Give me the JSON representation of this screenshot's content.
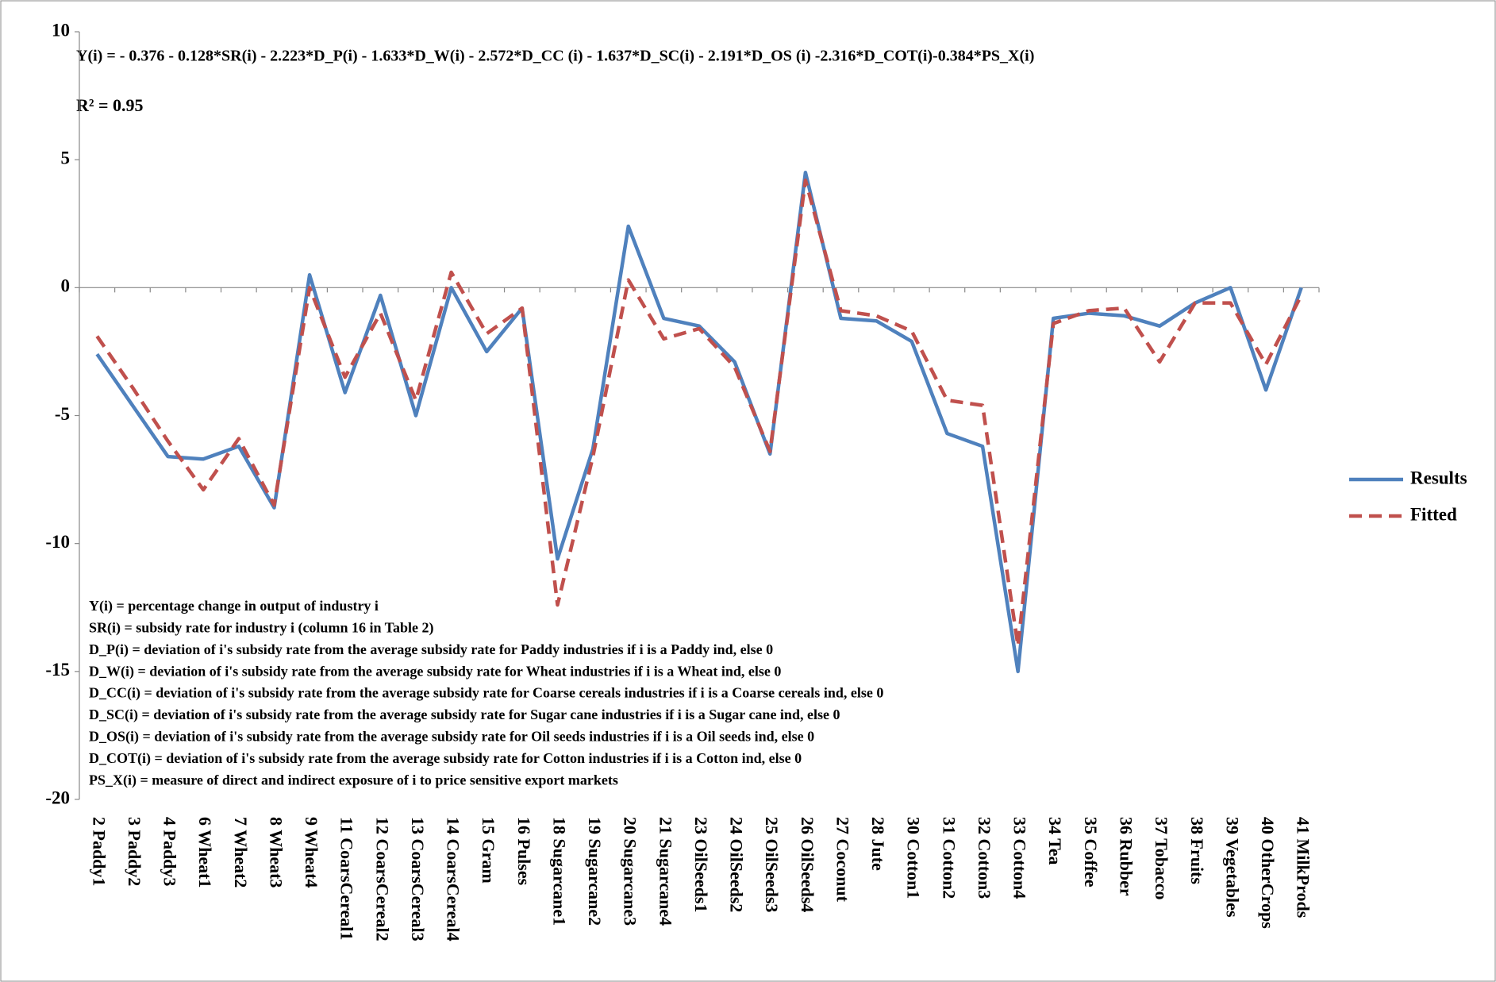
{
  "chart_data": {
    "type": "line",
    "title": "Y(i) = - 0.376 - 0.128*SR(i) - 2.223*D_P(i)  - 1.633*D_W(i)   - 2.572*D_CC (i) - 1.637*D_SC(i) - 2.191*D_OS (i) -2.316*D_COT(i)-0.384*PS_X(i)",
    "subtitle": "R² = 0.95",
    "annotations": [
      "Y(i) = percentage change in output of industry i",
      "SR(i) = subsidy rate for industry i (column 16 in Table 2)",
      "D_P(i) = deviation of i's subsidy rate from the average subsidy rate for Paddy industries if i is a Paddy ind, else 0",
      "D_W(i) = deviation of i's subsidy rate from the average subsidy rate for Wheat industries if i is a Wheat ind, else 0",
      "D_CC(i) = deviation of i's subsidy rate from the average subsidy rate for Coarse cereals  industries if i is a Coarse cereals ind, else 0",
      "D_SC(i) = deviation of i's subsidy rate from the average subsidy rate for Sugar cane industries if i is a Sugar cane ind, else 0",
      "D_OS(i) = deviation of i's subsidy rate from the average subsidy rate for Oil seeds industries if i is a Oil seeds ind, else 0",
      "D_COT(i) = deviation of i's subsidy rate from the average subsidy rate for Cotton industries if i is a Cotton ind, else 0",
      "PS_X(i) = measure of direct and indirect exposure of i to price sensitive  export markets"
    ],
    "categories": [
      "2 Paddy1",
      "3 Paddy2",
      "4 Paddy3",
      "6 Wheat1",
      "7 Wheat2",
      "8 Wheat3",
      "9 Wheat4",
      "11 CoarsCereal1",
      "12 CoarsCereal2",
      "13 CoarsCereal3",
      "14 CoarsCereal4",
      "15 Gram",
      "16 Pulses",
      "18 Sugarcane1",
      "19 Sugarcane2",
      "20 Sugarcane3",
      "21 Sugarcane4",
      "23 OilSeeds1",
      "24 OilSeeds2",
      "25 OilSeeds3",
      "26 OilSeeds4",
      "27 Coconut",
      "28 Jute",
      "30 Cotton1",
      "31 Cotton2",
      "32 Cotton3",
      "33 Cotton4",
      "34 Tea",
      "35 Coffee",
      "36 Rubber",
      "37 Tobacco",
      "38 Fruits",
      "39 Vegetables",
      "40 OtherCrops",
      "41 MilkProds"
    ],
    "series": [
      {
        "name": "Results",
        "color": "#4f81bd",
        "dash": false,
        "values": [
          -2.6,
          -4.6,
          -6.6,
          -6.7,
          -6.2,
          -8.6,
          0.5,
          -4.1,
          -0.3,
          -5.0,
          0,
          -2.5,
          -0.8,
          -10.6,
          -6.3,
          2.4,
          -1.2,
          -1.5,
          -2.9,
          -6.5,
          4.5,
          -1.2,
          -1.3,
          -2.1,
          -5.7,
          -6.2,
          -15.0,
          -1.2,
          -1.0,
          -1.1,
          -1.5,
          -0.6,
          0,
          -4.0,
          0
        ]
      },
      {
        "name": "Fitted",
        "color": "#c0504d",
        "dash": true,
        "values": [
          -1.9,
          -3.9,
          -6.0,
          -7.9,
          -5.9,
          -8.5,
          0,
          -3.5,
          -1.0,
          -4.4,
          0.6,
          -1.8,
          -0.8,
          -12.4,
          -6.6,
          0.3,
          -2.0,
          -1.6,
          -3.1,
          -6.4,
          4.2,
          -0.9,
          -1.1,
          -1.7,
          -4.4,
          -4.6,
          -14.0,
          -1.4,
          -0.9,
          -0.8,
          -2.9,
          -0.6,
          -0.6,
          -3.0,
          -0.3
        ]
      }
    ],
    "ylim": [
      -20,
      10
    ],
    "yticks": [
      -20,
      -15,
      -10,
      -5,
      0,
      5,
      10
    ],
    "legend": "right"
  }
}
